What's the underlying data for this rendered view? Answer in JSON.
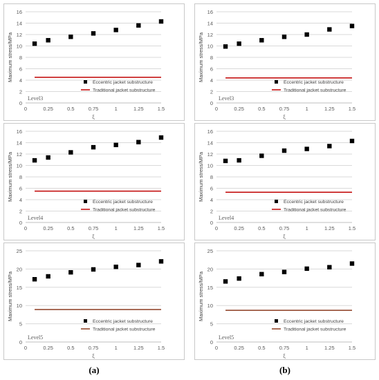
{
  "captions": {
    "a": "(a)",
    "b": "(b)"
  },
  "colors": {
    "marker": "#000000",
    "line_red": "#c00000",
    "line_brown": "#8b3a1e",
    "grid": "#d9d9d9",
    "axis_text": "#595959"
  },
  "chart_data": [
    {
      "id": "a-level3",
      "type": "scatter",
      "level_label": "Level3",
      "xlabel": "ξ",
      "ylabel": "Maximum stress/MPa",
      "xlim": [
        0,
        1.5
      ],
      "ylim": [
        0,
        16
      ],
      "xticks": [
        "0",
        "0.25",
        "0.5",
        "0.75",
        "1",
        "1.25",
        "1.5"
      ],
      "yticks": [
        "0",
        "2",
        "4",
        "6",
        "8",
        "10",
        "12",
        "14",
        "16"
      ],
      "series": [
        {
          "name": "Eccentric jacket substructure",
          "kind": "marker",
          "x": [
            0.1,
            0.25,
            0.5,
            0.75,
            1.0,
            1.25,
            1.5
          ],
          "y": [
            10.4,
            11.0,
            11.6,
            12.2,
            12.8,
            13.6,
            14.3
          ]
        },
        {
          "name": "Traditional jacket substructure",
          "kind": "line",
          "x": [
            0.1,
            1.5
          ],
          "y": [
            4.5,
            4.5
          ]
        }
      ]
    },
    {
      "id": "b-level3",
      "type": "scatter",
      "level_label": "Level3",
      "xlabel": "ξ",
      "ylabel": "Maximum stress/MPa",
      "xlim": [
        0,
        1.5
      ],
      "ylim": [
        0,
        16
      ],
      "xticks": [
        "0",
        "0.25",
        "0.5",
        "0.75",
        "1",
        "1.25",
        "1.5"
      ],
      "yticks": [
        "0",
        "2",
        "4",
        "6",
        "8",
        "10",
        "12",
        "14",
        "16"
      ],
      "series": [
        {
          "name": "Eccentric jacket substructure",
          "kind": "marker",
          "x": [
            0.1,
            0.25,
            0.5,
            0.75,
            1.0,
            1.25,
            1.5
          ],
          "y": [
            9.9,
            10.4,
            11.0,
            11.6,
            12.0,
            12.9,
            13.5
          ]
        },
        {
          "name": "Traditional jacket substructure",
          "kind": "line",
          "x": [
            0.1,
            1.5
          ],
          "y": [
            4.4,
            4.4
          ]
        }
      ]
    },
    {
      "id": "a-level4",
      "type": "scatter",
      "level_label": "Level4",
      "xlabel": "ξ",
      "ylabel": "Maximum stress/MPa",
      "xlim": [
        0,
        1.5
      ],
      "ylim": [
        0,
        16
      ],
      "xticks": [
        "0",
        "0.25",
        "0.5",
        "0.75",
        "1",
        "1.25",
        "1.5"
      ],
      "yticks": [
        "0",
        "2",
        "4",
        "6",
        "8",
        "10",
        "12",
        "14",
        "16"
      ],
      "series": [
        {
          "name": "Eccentric jacket substructure",
          "kind": "marker",
          "x": [
            0.1,
            0.25,
            0.5,
            0.75,
            1.0,
            1.25,
            1.5
          ],
          "y": [
            10.9,
            11.4,
            12.3,
            13.2,
            13.6,
            14.1,
            14.9
          ]
        },
        {
          "name": "Traditional jacket substructure",
          "kind": "line",
          "x": [
            0.1,
            1.5
          ],
          "y": [
            5.5,
            5.5
          ]
        }
      ]
    },
    {
      "id": "b-level4",
      "type": "scatter",
      "level_label": "Level4",
      "xlabel": "ξ",
      "ylabel": "Maximum stress/MPa",
      "xlim": [
        0,
        1.5
      ],
      "ylim": [
        0,
        16
      ],
      "xticks": [
        "0",
        "0.25",
        "0.5",
        "0.75",
        "1",
        "1.25",
        "1.5"
      ],
      "yticks": [
        "0",
        "2",
        "4",
        "6",
        "8",
        "10",
        "12",
        "14",
        "16"
      ],
      "series": [
        {
          "name": "Eccentric jacket substructure",
          "kind": "marker",
          "x": [
            0.1,
            0.25,
            0.5,
            0.75,
            1.0,
            1.25,
            1.5
          ],
          "y": [
            10.8,
            10.9,
            11.7,
            12.6,
            12.9,
            13.4,
            14.3
          ]
        },
        {
          "name": "Traditional jacket substructure",
          "kind": "line",
          "x": [
            0.1,
            1.5
          ],
          "y": [
            5.3,
            5.3
          ]
        }
      ]
    },
    {
      "id": "a-level5",
      "type": "scatter",
      "level_label": "Level5",
      "xlabel": "ξ",
      "ylabel": "Maximum stress/MPa",
      "xlim": [
        0,
        1.5
      ],
      "ylim": [
        0,
        25
      ],
      "xticks": [
        "0",
        "0.25",
        "0.5",
        "0.75",
        "1",
        "1.25",
        "1.5"
      ],
      "yticks": [
        "0",
        "5",
        "10",
        "15",
        "20",
        "25"
      ],
      "series": [
        {
          "name": "Eccentric jacket substructure",
          "kind": "marker",
          "x": [
            0.1,
            0.25,
            0.5,
            0.75,
            1.0,
            1.25,
            1.5
          ],
          "y": [
            17.2,
            18.0,
            19.1,
            19.9,
            20.6,
            21.1,
            22.1
          ]
        },
        {
          "name": "Traditional jacket substructure",
          "kind": "line",
          "x": [
            0.1,
            1.5
          ],
          "y": [
            8.9,
            8.9
          ]
        }
      ]
    },
    {
      "id": "b-level5",
      "type": "scatter",
      "level_label": "Level5",
      "xlabel": "ξ",
      "ylabel": "Maximum stress/MPa",
      "xlim": [
        0,
        1.5
      ],
      "ylim": [
        0,
        25
      ],
      "xticks": [
        "0",
        "0.25",
        "0.5",
        "0.75",
        "1",
        "1.25",
        "1.5"
      ],
      "yticks": [
        "0",
        "5",
        "10",
        "15",
        "20",
        "25"
      ],
      "series": [
        {
          "name": "Eccentric jacket substructure",
          "kind": "marker",
          "x": [
            0.1,
            0.25,
            0.5,
            0.75,
            1.0,
            1.25,
            1.5
          ],
          "y": [
            16.6,
            17.4,
            18.6,
            19.2,
            20.1,
            20.5,
            21.5
          ]
        },
        {
          "name": "Traditional jacket substructure",
          "kind": "line",
          "x": [
            0.1,
            1.5
          ],
          "y": [
            8.7,
            8.7
          ]
        }
      ]
    }
  ]
}
